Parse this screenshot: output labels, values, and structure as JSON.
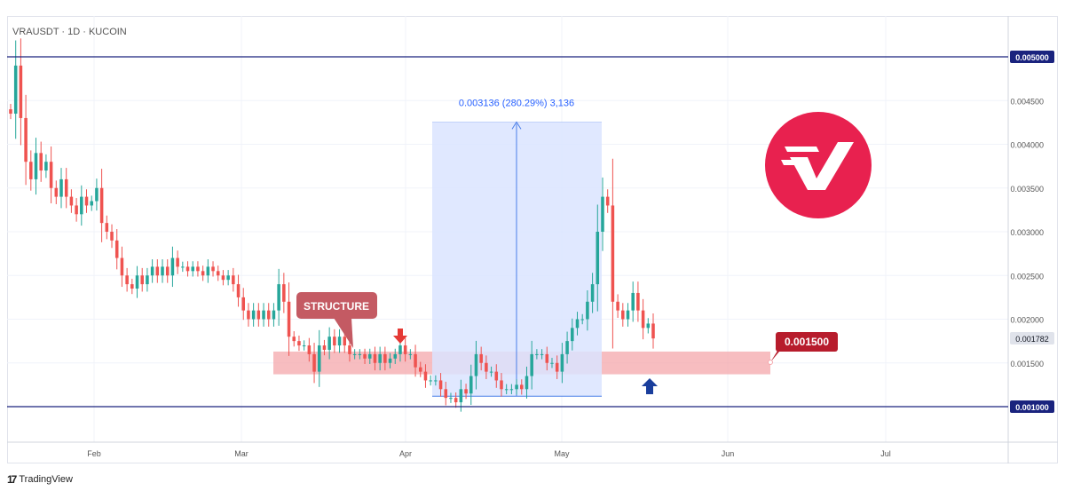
{
  "header": {
    "symbol_line": "VRAUSDT · 1D · KUCOIN"
  },
  "footer": {
    "brand": "TradingView",
    "brand_icon": "tradingview-logo-icon"
  },
  "colors": {
    "up": "#26a69a",
    "down": "#ef5350",
    "level_line": "#1a237e",
    "zone": "#f4a7ab",
    "measure_fill": "#dbe4ff",
    "measure_line": "#4a7ee8",
    "logo_bg": "#e8214f",
    "callout": "#c45a63",
    "price_tag": "#b71c2c"
  },
  "chart_data": {
    "type": "candlestick",
    "title": "VRAUSDT · 1D · KUCOIN",
    "ylim": [
      0.0007,
      0.0053
    ],
    "ytick_labels": [
      "0.001500",
      "0.002000",
      "0.002500",
      "0.003000",
      "0.003500",
      "0.004000",
      "0.004500"
    ],
    "xtick_labels": [
      "Feb",
      "Mar",
      "Apr",
      "May",
      "Jun",
      "Jul"
    ],
    "grid": true,
    "horizontal_levels": [
      {
        "label": "0.005000",
        "value": 0.005
      },
      {
        "label": "0.001000",
        "value": 0.001
      }
    ],
    "current_price": {
      "label": "0.001782",
      "value": 0.001782
    },
    "support_zone": {
      "low": 0.00137,
      "high": 0.00163
    },
    "measure": {
      "label": "0.003136 (280.29%) 3,136",
      "from": 0.001119,
      "to": 0.004255
    },
    "annotations": {
      "structure_label": "STRUCTURE",
      "level_tag": "0.001500"
    },
    "close": [
      0.00435,
      0.0049,
      0.0043,
      0.0038,
      0.0036,
      0.0039,
      0.0037,
      0.0038,
      0.0035,
      0.0034,
      0.0036,
      0.0034,
      0.0033,
      0.0032,
      0.0034,
      0.0033,
      0.00335,
      0.0035,
      0.0031,
      0.003,
      0.0029,
      0.0027,
      0.0025,
      0.0024,
      0.00235,
      0.0025,
      0.0024,
      0.0025,
      0.0026,
      0.0025,
      0.0026,
      0.0025,
      0.0027,
      0.0026,
      0.0026,
      0.00255,
      0.0026,
      0.00255,
      0.0025,
      0.0026,
      0.00255,
      0.0025,
      0.00245,
      0.0025,
      0.0024,
      0.00225,
      0.0021,
      0.002,
      0.0021,
      0.002,
      0.0021,
      0.002,
      0.0021,
      0.0024,
      0.0022,
      0.0018,
      0.00175,
      0.0017,
      0.0017,
      0.0016,
      0.0014,
      0.0017,
      0.00165,
      0.0018,
      0.0017,
      0.0018,
      0.0017,
      0.0016,
      0.0016,
      0.0016,
      0.00155,
      0.0016,
      0.0015,
      0.0016,
      0.0015,
      0.00155,
      0.0016,
      0.0017,
      0.0016,
      0.0016,
      0.00145,
      0.0014,
      0.0013,
      0.0013,
      0.0013,
      0.0012,
      0.0011,
      0.0011,
      0.00105,
      0.0012,
      0.00115,
      0.00135,
      0.0016,
      0.0015,
      0.0014,
      0.0014,
      0.0013,
      0.0012,
      0.0012,
      0.0012,
      0.00125,
      0.0012,
      0.00135,
      0.0016,
      0.0016,
      0.0016,
      0.0015,
      0.0015,
      0.0014,
      0.0016,
      0.00175,
      0.0019,
      0.002,
      0.002,
      0.0022,
      0.0024,
      0.003,
      0.0034,
      0.0033,
      0.0022,
      0.0021,
      0.002,
      0.0021,
      0.0023,
      0.0021,
      0.0019,
      0.00195,
      0.00178
    ]
  }
}
